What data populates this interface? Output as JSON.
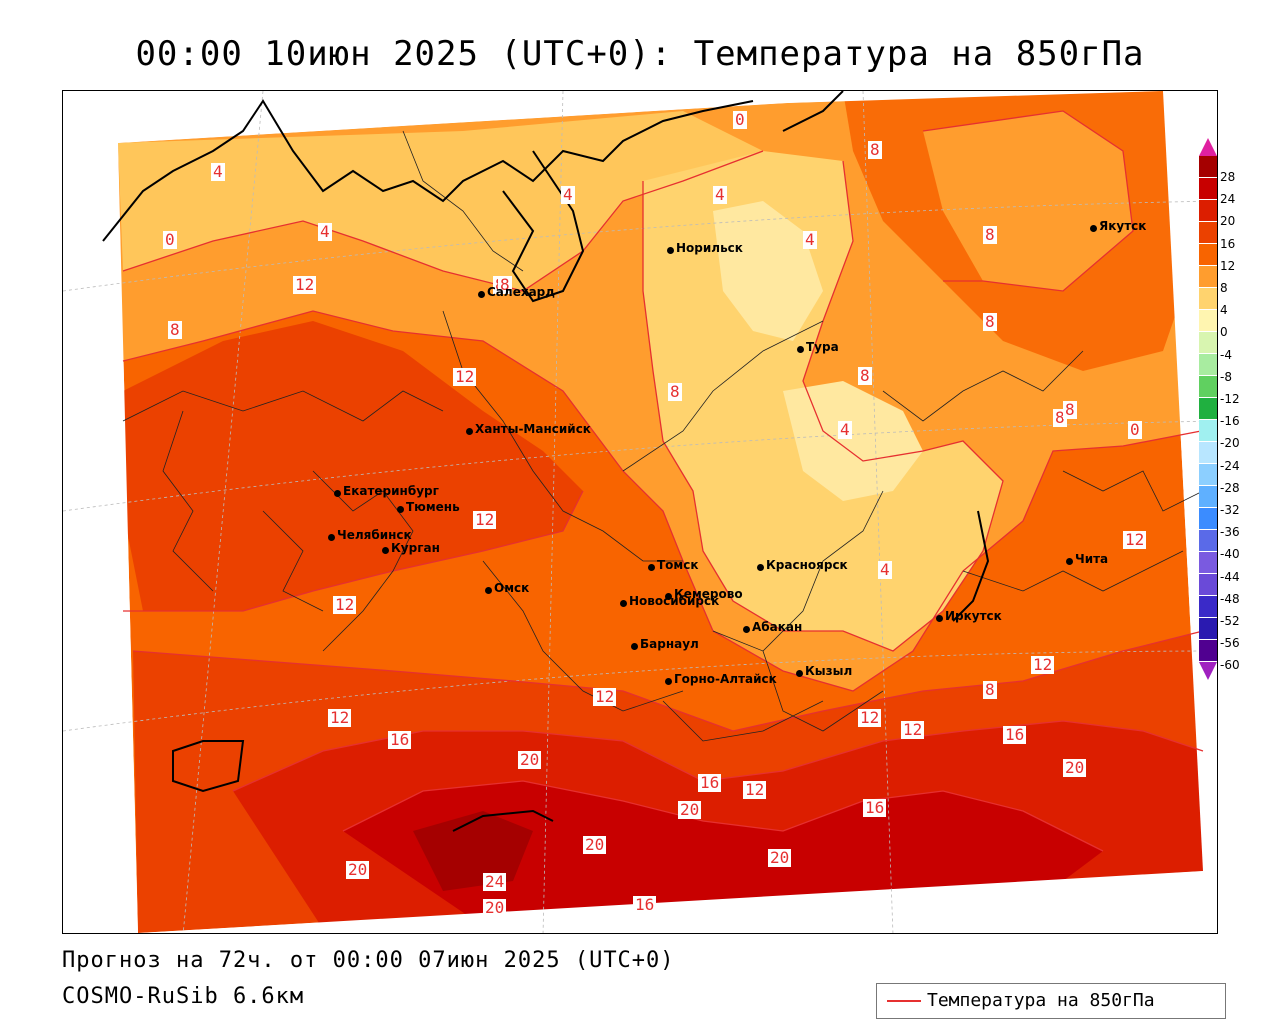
{
  "title": "00:00 10июн 2025 (UTC+0): Температура на 850гПа",
  "footer": {
    "forecast": "Прогноз на 72ч. от 00:00 07июн 2025 (UTC+0)",
    "model": "COSMO-RuSib 6.6км"
  },
  "legend": {
    "label": "Температура на 850гПа",
    "line_color": "#e63030"
  },
  "color_scale": {
    "ticks": [
      "28",
      "24",
      "20",
      "16",
      "12",
      "8",
      "4",
      "0",
      "-4",
      "-8",
      "-12",
      "-16",
      "-20",
      "-24",
      "-28",
      "-32",
      "-36",
      "-40",
      "-44",
      "-48",
      "-52",
      "-56",
      "-60"
    ],
    "colors": [
      "#a50000",
      "#c80000",
      "#dc1e00",
      "#eb4100",
      "#f86400",
      "#ff9d2e",
      "#ffd36e",
      "#fff5b0",
      "#d8f5b0",
      "#a8eca0",
      "#60d060",
      "#20b040",
      "#a0f0f0",
      "#b8e6ff",
      "#8ccfff",
      "#5fb0ff",
      "#3b8cff",
      "#5a6ae8",
      "#7a5ae0",
      "#6a4ad8",
      "#3a2ac8",
      "#2a1ab0",
      "#500090"
    ],
    "top_arrow_color": "#e020a0",
    "bottom_arrow_color": "#a020c0"
  },
  "cities": [
    {
      "name": "Якутск"
    },
    {
      "name": "Норильск"
    },
    {
      "name": "Салехард"
    },
    {
      "name": "Тура"
    },
    {
      "name": "Ханты-Мансийск"
    },
    {
      "name": "Екатеринбург"
    },
    {
      "name": "Тюмень"
    },
    {
      "name": "Челябинск"
    },
    {
      "name": "Курган"
    },
    {
      "name": "Омск"
    },
    {
      "name": "Томск"
    },
    {
      "name": "Красноярск"
    },
    {
      "name": "Новосибирск"
    },
    {
      "name": "Кемерово"
    },
    {
      "name": "Абакан"
    },
    {
      "name": "Барнаул"
    },
    {
      "name": "Иркутск"
    },
    {
      "name": "Чита"
    },
    {
      "name": "Горно-Алтайск"
    },
    {
      "name": "Кызыл"
    }
  ],
  "isotherm_labels": [
    "0",
    "8",
    "4",
    "4",
    "4",
    "0",
    "4",
    "4",
    "8",
    "8",
    "8",
    "12",
    "8",
    "8",
    "8",
    "12",
    "8",
    "12",
    "4",
    "8",
    "8",
    "0",
    "4",
    "12",
    "12",
    "8",
    "12",
    "12",
    "12",
    "12",
    "12",
    "16",
    "20",
    "16",
    "12",
    "20",
    "16",
    "20",
    "20",
    "16",
    "20",
    "24",
    "20",
    "16",
    "20"
  ]
}
